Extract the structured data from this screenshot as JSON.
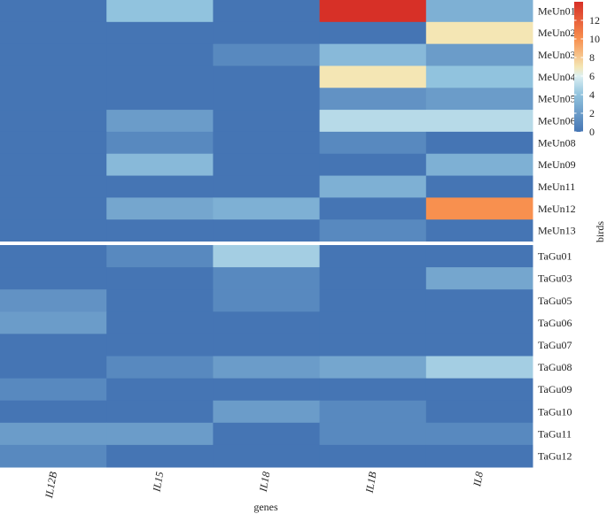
{
  "chart_data": {
    "type": "heatmap",
    "x_categories": [
      "IL12B",
      "IL15",
      "IL18",
      "IL1B",
      "IL8"
    ],
    "y_categories": [
      "MeUn01",
      "MeUn02",
      "MeUn03",
      "MeUn04",
      "MeUn05",
      "MeUn06",
      "MeUn08",
      "MeUn09",
      "MeUn11",
      "MeUn12",
      "MeUn13",
      "TaGu01",
      "TaGu03",
      "TaGu05",
      "TaGu06",
      "TaGu07",
      "TaGu08",
      "TaGu09",
      "TaGu10",
      "TaGu11",
      "TaGu12"
    ],
    "groups": [
      {
        "rows": [
          "MeUn01",
          "MeUn02",
          "MeUn03",
          "MeUn04",
          "MeUn05",
          "MeUn06",
          "MeUn08",
          "MeUn09",
          "MeUn11",
          "MeUn12",
          "MeUn13"
        ]
      },
      {
        "rows": [
          "TaGu01",
          "TaGu03",
          "TaGu05",
          "TaGu06",
          "TaGu07",
          "TaGu08",
          "TaGu09",
          "TaGu10",
          "TaGu11",
          "TaGu12"
        ]
      }
    ],
    "values": [
      [
        0,
        4,
        0,
        14,
        3
      ],
      [
        0,
        0,
        0,
        0,
        7
      ],
      [
        0,
        0,
        1,
        3.5,
        2
      ],
      [
        0,
        0,
        0,
        7,
        4
      ],
      [
        0,
        0,
        0,
        1.5,
        2
      ],
      [
        0,
        2,
        0,
        5,
        5
      ],
      [
        0,
        1,
        0,
        1,
        0
      ],
      [
        0,
        3.5,
        0,
        0,
        3
      ],
      [
        0,
        0,
        0,
        3,
        0
      ],
      [
        0,
        2.5,
        3,
        0,
        10
      ],
      [
        0,
        0,
        0,
        1,
        0
      ],
      [
        0,
        1,
        4.5,
        0,
        0
      ],
      [
        0,
        0,
        1,
        0,
        2.5
      ],
      [
        1.5,
        0,
        1,
        0,
        0
      ],
      [
        2,
        0,
        0,
        0,
        0
      ],
      [
        0,
        0,
        0,
        0,
        0
      ],
      [
        0,
        1,
        2,
        2.5,
        4.5
      ],
      [
        1,
        0,
        0,
        0,
        0
      ],
      [
        0,
        0,
        2,
        1,
        0
      ],
      [
        2,
        2,
        0,
        1,
        1
      ],
      [
        1,
        0,
        0,
        0,
        0
      ]
    ],
    "xlabel": "genes",
    "ylabel": "birds",
    "colorbar": {
      "range": [
        0,
        14
      ],
      "ticks": [
        0,
        2,
        4,
        6,
        8,
        10,
        12
      ],
      "stops": [
        {
          "value": 0,
          "color": "#4575b4"
        },
        {
          "value": 4,
          "color": "#91c3de"
        },
        {
          "value": 6,
          "color": "#ddf0f2"
        },
        {
          "value": 7,
          "color": "#f4e6b4"
        },
        {
          "value": 10,
          "color": "#f8904f"
        },
        {
          "value": 14,
          "color": "#d73027"
        }
      ]
    },
    "legend_position": "right",
    "grid": false
  }
}
